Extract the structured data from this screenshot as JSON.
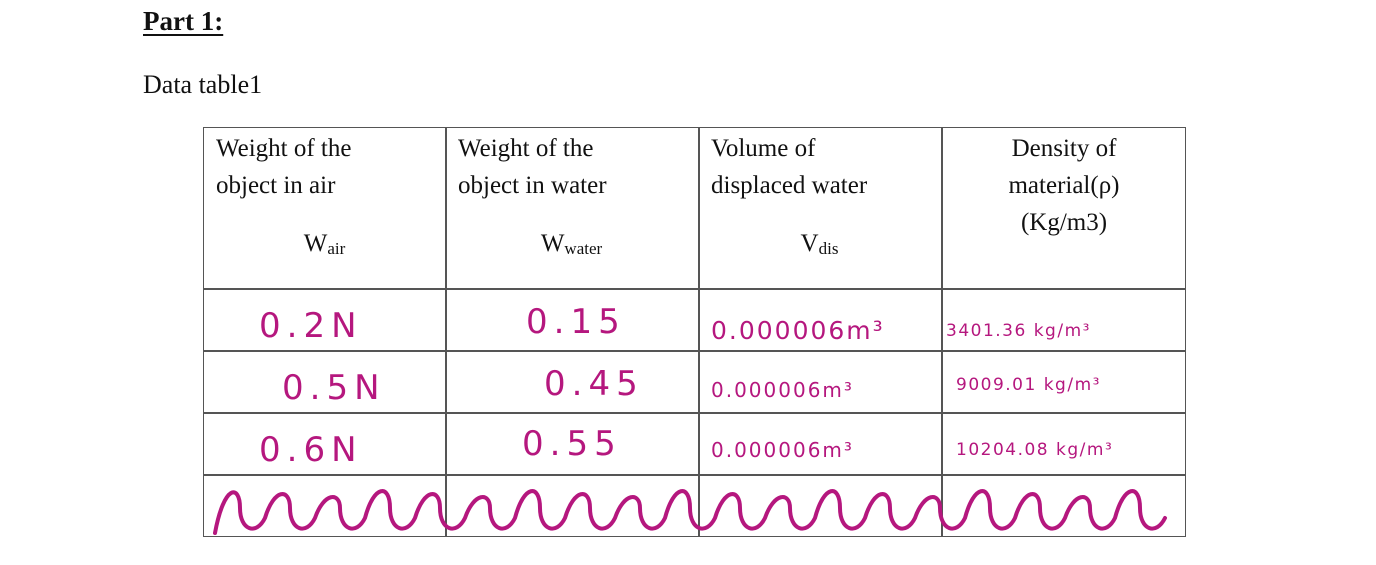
{
  "page": {
    "part_title": "Part 1:",
    "caption": "Data table1"
  },
  "table": {
    "headers": [
      {
        "line1": "Weight of the",
        "line2": "object in air",
        "line3": "",
        "symbol": "W",
        "symbol_sub": "air"
      },
      {
        "line1": "Weight of the",
        "line2": "object in water",
        "line3": "",
        "symbol": "W",
        "symbol_sub": "water"
      },
      {
        "line1": "Volume of",
        "line2": "displaced water",
        "line3": "",
        "symbol": "V",
        "symbol_sub": "dis"
      },
      {
        "line1": "Density of",
        "line2": "material(ρ)",
        "line3": "(Kg/m3)",
        "symbol": "",
        "symbol_sub": ""
      }
    ],
    "rows": [
      {
        "w_air": "0.2N",
        "w_water": "0.15",
        "v_dis": "0.000006m³",
        "density": "3401.36 kg/m³"
      },
      {
        "w_air": "0.5N",
        "w_water": "0.45",
        "v_dis": "0.000006m³",
        "density": "9009.01 kg/m³"
      },
      {
        "w_air": "0.6N",
        "w_water": "0.55",
        "v_dis": "0.000006m³",
        "density": "10204.08 kg/m³"
      }
    ],
    "ink_color": "#b5177e"
  }
}
